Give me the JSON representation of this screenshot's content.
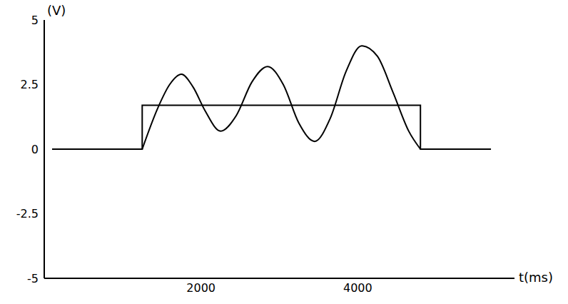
{
  "chart_data": {
    "type": "line",
    "x_label": "t(ms)",
    "y_label": "(V)",
    "xlim": [
      0,
      6000
    ],
    "xticks": [
      2000,
      4000
    ],
    "ylim": [
      -5,
      5
    ],
    "yticks": [
      5,
      2.5,
      0,
      -2.5,
      -5
    ],
    "grid": false,
    "series": [
      {
        "color": "#000000",
        "x": [
          100,
          1250,
          1250,
          4800,
          4800,
          5700
        ],
        "values": [
          0,
          0,
          1.7,
          1.7,
          0,
          0
        ]
      },
      {
        "color": "#000000",
        "x": [
          1250,
          1450,
          1600,
          1750,
          1900,
          2050,
          2250,
          2450,
          2650,
          2850,
          3050,
          3250,
          3450,
          3650,
          3850,
          4050,
          4250,
          4450,
          4650,
          4800
        ],
        "values": [
          0,
          1.6,
          2.5,
          2.9,
          2.4,
          1.5,
          0.7,
          1.3,
          2.6,
          3.2,
          2.5,
          1.0,
          0.3,
          1.2,
          3.0,
          4.0,
          3.6,
          2.2,
          0.7,
          0
        ]
      }
    ]
  }
}
